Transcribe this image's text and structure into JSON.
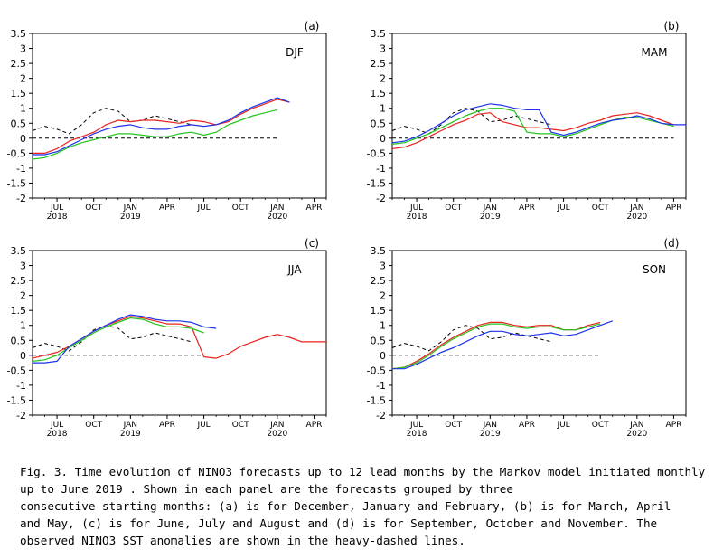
{
  "caption": {
    "lines": [
      "Fig. 3. Time evolution of NINO3 forecasts up to 12 lead months by the Markov model initiated monthly",
      "up to  June 2019      . Shown in each panel are the forecasts grouped by three",
      "consecutive starting months: (a) is for December, January and February, (b) is for March, April",
      "and May, (c) is for June, July and August and (d) is for September, October and November. The",
      "observed NINO3 SST anomalies are shown in the heavy-dashed lines."
    ]
  },
  "colors": {
    "red": "#e8221e",
    "green": "#22c41e",
    "blue": "#1e32e8",
    "observed": "#000000",
    "zero_line": "#000000"
  },
  "chart_data": [
    {
      "type": "line",
      "panel_label": "(a)",
      "season_label": "DJF",
      "yticks": [
        "3.5",
        "3",
        "2.5",
        "2",
        "1.5",
        "1",
        "0.5",
        "0",
        "-0.5",
        "-1",
        "-1.5",
        "-2"
      ],
      "xtick_labels": [
        "JUL",
        "OCT",
        "JAN",
        "APR",
        "JUL",
        "OCT",
        "JAN",
        "APR"
      ],
      "xtick_x": [
        "2018-07",
        "2018-10",
        "2019-01",
        "2019-04",
        "2019-07",
        "2019-10",
        "2020-01",
        "2020-04"
      ],
      "year_labels": [
        {
          "x": "2018-07",
          "text": "2018"
        },
        {
          "x": "2019-01",
          "text": "2019"
        },
        {
          "x": "2020-01",
          "text": "2020"
        }
      ],
      "xlim": [
        "2018-05",
        "2020-05"
      ],
      "ylim": [
        -2,
        3.5
      ],
      "series": [
        {
          "color": "observed",
          "dash": true,
          "x": [
            "2018-05",
            "2018-06",
            "2018-07",
            "2018-08",
            "2018-09",
            "2018-10",
            "2018-11",
            "2018-12",
            "2019-01",
            "2019-02",
            "2019-03",
            "2019-04",
            "2019-05",
            "2019-06"
          ],
          "y": [
            0.25,
            0.4,
            0.3,
            0.15,
            0.45,
            0.85,
            1.0,
            0.9,
            0.55,
            0.6,
            0.75,
            0.65,
            0.55,
            0.45
          ]
        },
        {
          "color": "zero_line",
          "dash": true,
          "x": [
            "2018-05",
            "2020-01"
          ],
          "y": [
            0,
            0
          ]
        },
        {
          "color": "red",
          "x": [
            "2018-05",
            "2018-06",
            "2018-07",
            "2018-08",
            "2018-09",
            "2018-10",
            "2018-11",
            "2018-12",
            "2019-01",
            "2019-02",
            "2019-03",
            "2019-04",
            "2019-05",
            "2019-06",
            "2019-07",
            "2019-08",
            "2019-09",
            "2019-10",
            "2019-11",
            "2019-12",
            "2020-01",
            "2020-02"
          ],
          "y": [
            -0.5,
            -0.5,
            -0.35,
            -0.1,
            0.05,
            0.2,
            0.45,
            0.6,
            0.55,
            0.6,
            0.6,
            0.55,
            0.5,
            0.6,
            0.55,
            0.45,
            0.55,
            0.8,
            1.0,
            1.15,
            1.3,
            1.2
          ]
        },
        {
          "color": "green",
          "x": [
            "2018-05",
            "2018-06",
            "2018-07",
            "2018-08",
            "2018-09",
            "2018-10",
            "2018-11",
            "2018-12",
            "2019-01",
            "2019-02",
            "2019-03",
            "2019-04",
            "2019-05",
            "2019-06",
            "2019-07",
            "2019-08",
            "2019-09",
            "2019-10",
            "2019-11",
            "2019-12",
            "2020-01"
          ],
          "y": [
            -0.7,
            -0.65,
            -0.5,
            -0.3,
            -0.15,
            -0.05,
            0.05,
            0.15,
            0.15,
            0.1,
            0.05,
            0.05,
            0.15,
            0.2,
            0.1,
            0.2,
            0.45,
            0.6,
            0.75,
            0.85,
            0.95
          ]
        },
        {
          "color": "blue",
          "x": [
            "2018-05",
            "2018-06",
            "2018-07",
            "2018-08",
            "2018-09",
            "2018-10",
            "2018-11",
            "2018-12",
            "2019-01",
            "2019-02",
            "2019-03",
            "2019-04",
            "2019-05",
            "2019-06",
            "2019-07",
            "2019-08",
            "2019-09",
            "2019-10",
            "2019-11",
            "2019-12",
            "2020-01",
            "2020-02"
          ],
          "y": [
            -0.55,
            -0.55,
            -0.45,
            -0.25,
            -0.05,
            0.15,
            0.3,
            0.4,
            0.45,
            0.35,
            0.3,
            0.3,
            0.4,
            0.45,
            0.4,
            0.45,
            0.6,
            0.85,
            1.05,
            1.2,
            1.35,
            1.2
          ]
        }
      ]
    },
    {
      "type": "line",
      "panel_label": "(b)",
      "season_label": "MAM",
      "yticks": [
        "3.5",
        "3",
        "2.5",
        "2",
        "1.5",
        "1",
        "0.5",
        "0",
        "-0.5",
        "-1",
        "-1.5",
        "-2"
      ],
      "xtick_labels": [
        "JUL",
        "OCT",
        "JAN",
        "APR",
        "JUL",
        "OCT",
        "JAN",
        "APR"
      ],
      "xtick_x": [
        "2018-07",
        "2018-10",
        "2019-01",
        "2019-04",
        "2019-07",
        "2019-10",
        "2020-01",
        "2020-04"
      ],
      "year_labels": [
        {
          "x": "2018-07",
          "text": "2018"
        },
        {
          "x": "2019-01",
          "text": "2019"
        },
        {
          "x": "2020-01",
          "text": "2020"
        }
      ],
      "xlim": [
        "2018-05",
        "2020-05"
      ],
      "ylim": [
        -2,
        3.5
      ],
      "series": [
        {
          "color": "observed",
          "dash": true,
          "x": [
            "2018-05",
            "2018-06",
            "2018-07",
            "2018-08",
            "2018-09",
            "2018-10",
            "2018-11",
            "2018-12",
            "2019-01",
            "2019-02",
            "2019-03",
            "2019-04",
            "2019-05",
            "2019-06"
          ],
          "y": [
            0.25,
            0.4,
            0.3,
            0.15,
            0.45,
            0.85,
            1.0,
            0.9,
            0.55,
            0.6,
            0.75,
            0.65,
            0.55,
            0.45
          ]
        },
        {
          "color": "zero_line",
          "dash": true,
          "x": [
            "2018-05",
            "2020-04"
          ],
          "y": [
            0,
            0
          ]
        },
        {
          "color": "red",
          "x": [
            "2018-05",
            "2018-06",
            "2018-07",
            "2018-08",
            "2018-09",
            "2018-10",
            "2018-11",
            "2018-12",
            "2019-01",
            "2019-02",
            "2019-03",
            "2019-04",
            "2019-05",
            "2019-06",
            "2019-07",
            "2019-08",
            "2019-09",
            "2019-10",
            "2019-11",
            "2019-12",
            "2020-01",
            "2020-02",
            "2020-03",
            "2020-04"
          ],
          "y": [
            -0.35,
            -0.3,
            -0.15,
            0.05,
            0.25,
            0.45,
            0.6,
            0.8,
            0.85,
            0.55,
            0.45,
            0.35,
            0.35,
            0.3,
            0.25,
            0.35,
            0.5,
            0.6,
            0.75,
            0.8,
            0.85,
            0.75,
            0.6,
            0.45
          ]
        },
        {
          "color": "green",
          "x": [
            "2018-05",
            "2018-06",
            "2018-07",
            "2018-08",
            "2018-09",
            "2018-10",
            "2018-11",
            "2018-12",
            "2019-01",
            "2019-02",
            "2019-03",
            "2019-04",
            "2019-05",
            "2019-06",
            "2019-07",
            "2019-08",
            "2019-09",
            "2019-10",
            "2019-11",
            "2019-12",
            "2020-01",
            "2020-02",
            "2020-03",
            "2020-04"
          ],
          "y": [
            -0.2,
            -0.15,
            0.0,
            0.15,
            0.35,
            0.55,
            0.75,
            0.9,
            1.0,
            1.0,
            0.9,
            0.2,
            0.15,
            0.15,
            0.05,
            0.15,
            0.3,
            0.45,
            0.6,
            0.7,
            0.7,
            0.6,
            0.5,
            0.4
          ]
        },
        {
          "color": "blue",
          "x": [
            "2018-05",
            "2018-06",
            "2018-07",
            "2018-08",
            "2018-09",
            "2018-10",
            "2018-11",
            "2018-12",
            "2019-01",
            "2019-02",
            "2019-03",
            "2019-04",
            "2019-05",
            "2019-06",
            "2019-07",
            "2019-08",
            "2019-09",
            "2019-10",
            "2019-11",
            "2019-12",
            "2020-01",
            "2020-02",
            "2020-03",
            "2020-04",
            "2020-05"
          ],
          "y": [
            -0.15,
            -0.1,
            0.05,
            0.25,
            0.5,
            0.75,
            0.95,
            1.05,
            1.15,
            1.1,
            1.0,
            0.95,
            0.95,
            0.2,
            0.1,
            0.2,
            0.35,
            0.5,
            0.6,
            0.65,
            0.75,
            0.65,
            0.5,
            0.45,
            0.45
          ]
        }
      ]
    },
    {
      "type": "line",
      "panel_label": "(c)",
      "season_label": "JJA",
      "yticks": [
        "3.5",
        "3",
        "2.5",
        "2",
        "1.5",
        "1",
        "0.5",
        "0",
        "-0.5",
        "-1",
        "-1.5",
        "-2"
      ],
      "xtick_labels": [
        "JUL",
        "OCT",
        "JAN",
        "APR",
        "JUL",
        "OCT",
        "JAN",
        "APR"
      ],
      "xtick_x": [
        "2018-07",
        "2018-10",
        "2019-01",
        "2019-04",
        "2019-07",
        "2019-10",
        "2020-01",
        "2020-04"
      ],
      "year_labels": [
        {
          "x": "2018-07",
          "text": "2018"
        },
        {
          "x": "2019-01",
          "text": "2019"
        },
        {
          "x": "2020-01",
          "text": "2020"
        }
      ],
      "xlim": [
        "2018-05",
        "2020-05"
      ],
      "ylim": [
        -2,
        3.5
      ],
      "series": [
        {
          "color": "observed",
          "dash": true,
          "x": [
            "2018-05",
            "2018-06",
            "2018-07",
            "2018-08",
            "2018-09",
            "2018-10",
            "2018-11",
            "2018-12",
            "2019-01",
            "2019-02",
            "2019-03",
            "2019-04",
            "2019-05",
            "2019-06"
          ],
          "y": [
            0.25,
            0.4,
            0.3,
            0.15,
            0.45,
            0.85,
            1.0,
            0.9,
            0.55,
            0.6,
            0.75,
            0.65,
            0.55,
            0.45
          ]
        },
        {
          "color": "zero_line",
          "dash": true,
          "x": [
            "2018-05",
            "2019-07"
          ],
          "y": [
            0,
            0
          ]
        },
        {
          "color": "red",
          "x": [
            "2018-05",
            "2018-06",
            "2018-07",
            "2018-08",
            "2018-09",
            "2018-10",
            "2018-11",
            "2018-12",
            "2019-01",
            "2019-02",
            "2019-03",
            "2019-04",
            "2019-05",
            "2019-06",
            "2019-07",
            "2019-08",
            "2019-09",
            "2019-10",
            "2019-11",
            "2019-12",
            "2020-01",
            "2020-02",
            "2020-03",
            "2020-04",
            "2020-05"
          ],
          "y": [
            -0.1,
            0.0,
            0.1,
            0.3,
            0.55,
            0.8,
            1.0,
            1.15,
            1.3,
            1.25,
            1.15,
            1.05,
            1.05,
            0.95,
            -0.05,
            -0.1,
            0.05,
            0.3,
            0.45,
            0.6,
            0.7,
            0.6,
            0.45,
            0.45,
            0.45
          ]
        },
        {
          "color": "green",
          "x": [
            "2018-05",
            "2018-06",
            "2018-07",
            "2018-08",
            "2018-09",
            "2018-10",
            "2018-11",
            "2018-12",
            "2019-01",
            "2019-02",
            "2019-03",
            "2019-04",
            "2019-05",
            "2019-06",
            "2019-07"
          ],
          "y": [
            -0.2,
            -0.15,
            0.0,
            0.25,
            0.5,
            0.75,
            0.95,
            1.1,
            1.25,
            1.2,
            1.05,
            0.95,
            0.95,
            0.9,
            0.75
          ]
        },
        {
          "color": "blue",
          "x": [
            "2018-05",
            "2018-06",
            "2018-07",
            "2018-08",
            "2018-09",
            "2018-10",
            "2018-11",
            "2018-12",
            "2019-01",
            "2019-02",
            "2019-03",
            "2019-04",
            "2019-05",
            "2019-06",
            "2019-07",
            "2019-08"
          ],
          "y": [
            -0.25,
            -0.25,
            -0.2,
            0.3,
            0.55,
            0.8,
            1.0,
            1.2,
            1.35,
            1.3,
            1.2,
            1.15,
            1.15,
            1.1,
            0.95,
            0.9
          ]
        }
      ]
    },
    {
      "type": "line",
      "panel_label": "(d)",
      "season_label": "SON",
      "yticks": [
        "3.5",
        "3",
        "2.5",
        "2",
        "1.5",
        "1",
        "0.5",
        "0",
        "-0.5",
        "-1",
        "-1.5",
        "-2"
      ],
      "xtick_labels": [
        "JUL",
        "OCT",
        "JAN",
        "APR",
        "JUL",
        "OCT",
        "JAN",
        "APR"
      ],
      "xtick_x": [
        "2018-07",
        "2018-10",
        "2019-01",
        "2019-04",
        "2019-07",
        "2019-10",
        "2020-01",
        "2020-04"
      ],
      "year_labels": [
        {
          "x": "2018-07",
          "text": "2018"
        },
        {
          "x": "2019-01",
          "text": "2019"
        },
        {
          "x": "2020-01",
          "text": "2020"
        }
      ],
      "xlim": [
        "2018-05",
        "2020-05"
      ],
      "ylim": [
        -2,
        3.5
      ],
      "series": [
        {
          "color": "observed",
          "dash": true,
          "x": [
            "2018-05",
            "2018-06",
            "2018-07",
            "2018-08",
            "2018-09",
            "2018-10",
            "2018-11",
            "2018-12",
            "2019-01",
            "2019-02",
            "2019-03",
            "2019-04",
            "2019-05",
            "2019-06"
          ],
          "y": [
            0.25,
            0.4,
            0.3,
            0.15,
            0.45,
            0.85,
            1.0,
            0.9,
            0.55,
            0.6,
            0.75,
            0.65,
            0.55,
            0.45
          ]
        },
        {
          "color": "zero_line",
          "dash": true,
          "x": [
            "2018-05",
            "2019-10"
          ],
          "y": [
            0,
            0
          ]
        },
        {
          "color": "red",
          "x": [
            "2018-05",
            "2018-06",
            "2018-07",
            "2018-08",
            "2018-09",
            "2018-10",
            "2018-11",
            "2018-12",
            "2019-01",
            "2019-02",
            "2019-03",
            "2019-04",
            "2019-05",
            "2019-06",
            "2019-07",
            "2019-08",
            "2019-09",
            "2019-10"
          ],
          "y": [
            -0.45,
            -0.4,
            -0.2,
            0.05,
            0.35,
            0.6,
            0.8,
            1.0,
            1.1,
            1.1,
            1.0,
            0.95,
            1.0,
            1.0,
            0.85,
            0.85,
            1.0,
            1.1
          ]
        },
        {
          "color": "green",
          "x": [
            "2018-05",
            "2018-06",
            "2018-07",
            "2018-08",
            "2018-09",
            "2018-10",
            "2018-11",
            "2018-12",
            "2019-01",
            "2019-02",
            "2019-03",
            "2019-04",
            "2019-05",
            "2019-06",
            "2019-07",
            "2019-08",
            "2019-09",
            "2019-10"
          ],
          "y": [
            -0.45,
            -0.4,
            -0.25,
            0.0,
            0.3,
            0.55,
            0.75,
            0.95,
            1.05,
            1.05,
            0.95,
            0.9,
            0.95,
            0.95,
            0.85,
            0.85,
            0.95,
            1.05
          ]
        },
        {
          "color": "blue",
          "x": [
            "2018-05",
            "2018-06",
            "2018-07",
            "2018-08",
            "2018-09",
            "2018-10",
            "2018-11",
            "2018-12",
            "2019-01",
            "2019-02",
            "2019-03",
            "2019-04",
            "2019-05",
            "2019-06",
            "2019-07",
            "2019-08",
            "2019-09",
            "2019-10",
            "2019-11"
          ],
          "y": [
            -0.45,
            -0.45,
            -0.3,
            -0.1,
            0.1,
            0.25,
            0.45,
            0.65,
            0.8,
            0.8,
            0.7,
            0.65,
            0.7,
            0.75,
            0.65,
            0.7,
            0.85,
            1.0,
            1.15
          ]
        }
      ]
    }
  ]
}
